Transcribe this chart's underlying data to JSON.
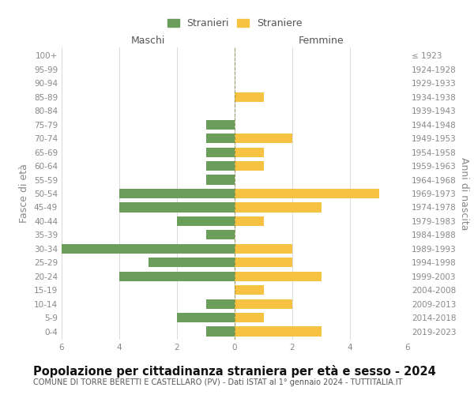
{
  "age_groups": [
    "0-4",
    "5-9",
    "10-14",
    "15-19",
    "20-24",
    "25-29",
    "30-34",
    "35-39",
    "40-44",
    "45-49",
    "50-54",
    "55-59",
    "60-64",
    "65-69",
    "70-74",
    "75-79",
    "80-84",
    "85-89",
    "90-94",
    "95-99",
    "100+"
  ],
  "birth_years": [
    "2019-2023",
    "2014-2018",
    "2009-2013",
    "2004-2008",
    "1999-2003",
    "1994-1998",
    "1989-1993",
    "1984-1988",
    "1979-1983",
    "1974-1978",
    "1969-1973",
    "1964-1968",
    "1959-1963",
    "1954-1958",
    "1949-1953",
    "1944-1948",
    "1939-1943",
    "1934-1938",
    "1929-1933",
    "1924-1928",
    "≤ 1923"
  ],
  "males": [
    1,
    2,
    1,
    0,
    4,
    3,
    6,
    1,
    2,
    4,
    4,
    1,
    1,
    1,
    1,
    1,
    0,
    0,
    0,
    0,
    0
  ],
  "females": [
    3,
    1,
    2,
    1,
    3,
    2,
    2,
    0,
    1,
    3,
    5,
    0,
    1,
    1,
    2,
    0,
    0,
    1,
    0,
    0,
    0
  ],
  "male_color": "#6a9e5a",
  "female_color": "#f5c242",
  "title": "Popolazione per cittadinanza straniera per età e sesso - 2024",
  "subtitle": "COMUNE DI TORRE BERETTI E CASTELLARO (PV) - Dati ISTAT al 1° gennaio 2024 - TUTTITALIA.IT",
  "xlabel_left": "Maschi",
  "xlabel_right": "Femmine",
  "ylabel_left": "Fasce di età",
  "ylabel_right": "Anni di nascita",
  "legend_male": "Stranieri",
  "legend_female": "Straniere",
  "xlim": 6,
  "bar_height": 0.7,
  "bg_color": "#ffffff",
  "grid_color": "#cccccc",
  "axis_label_color": "#888888",
  "tick_label_color": "#888888",
  "title_fontsize": 10.5,
  "subtitle_fontsize": 7.0,
  "tick_fontsize": 7.5,
  "label_fontsize": 9
}
